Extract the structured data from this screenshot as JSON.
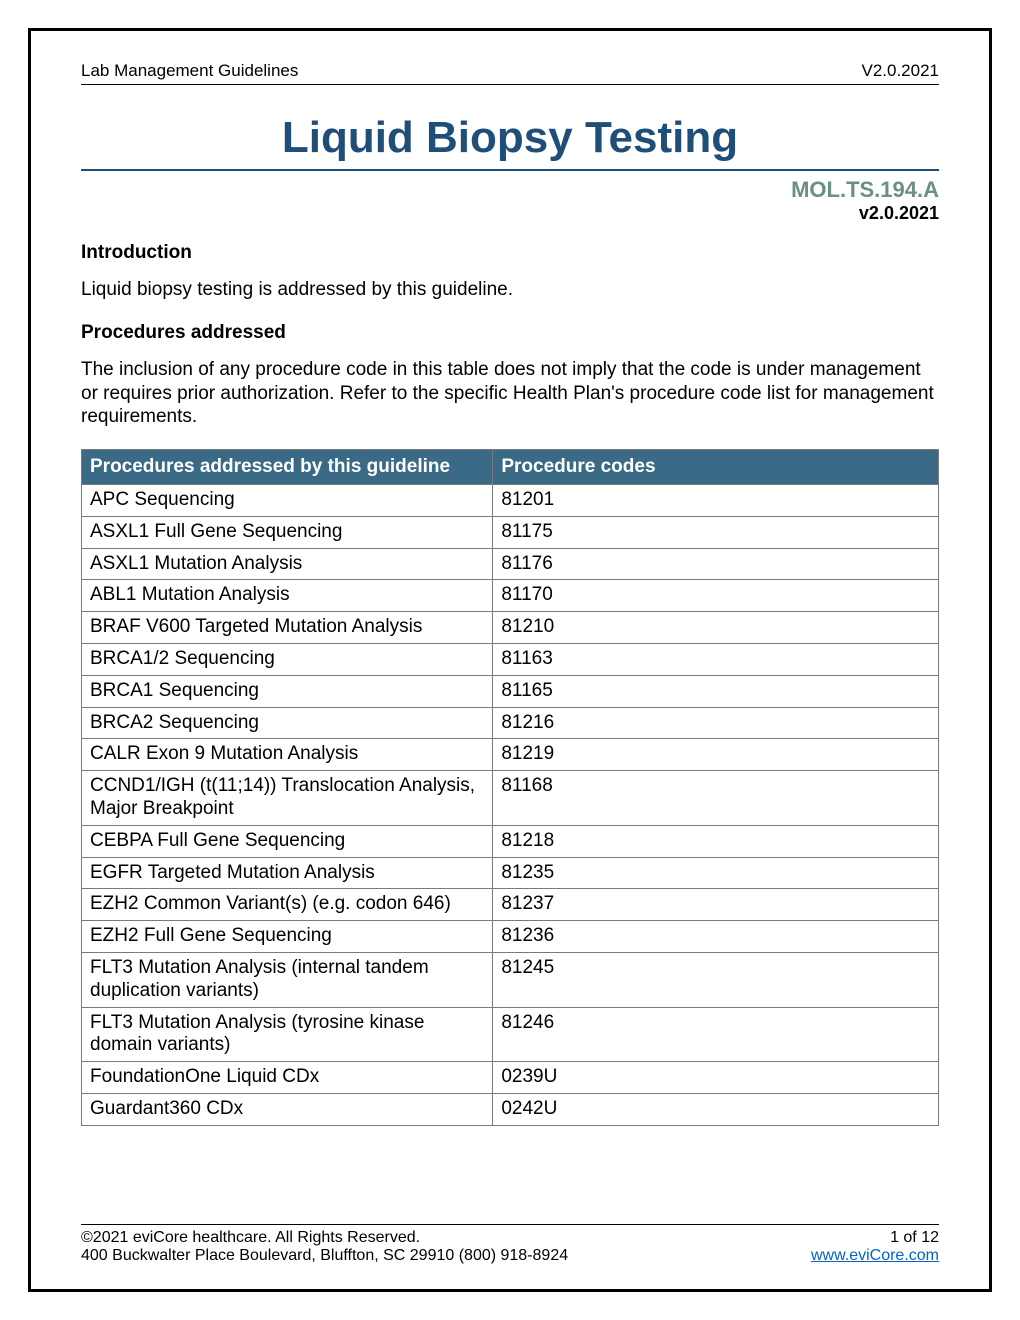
{
  "header": {
    "left": "Lab Management Guidelines",
    "right": "V2.0.2021"
  },
  "title": "Liquid Biopsy Testing",
  "doc_code": "MOL.TS.194.A",
  "doc_version": "v2.0.2021",
  "intro_head": "Introduction",
  "intro_text": "Liquid biopsy testing is addressed by this guideline.",
  "proc_head": "Procedures addressed",
  "proc_text": "The inclusion of any procedure code in this table does not imply that the code is under management or requires prior authorization. Refer to the specific Health Plan's procedure code list for management requirements.",
  "table": {
    "header_bg": "#3a6a86",
    "header_fg": "#ffffff",
    "border_color": "#7a7a7a",
    "columns": [
      "Procedures addressed by this guideline",
      "Procedure codes"
    ],
    "rows": [
      [
        "APC Sequencing",
        "81201"
      ],
      [
        "ASXL1 Full Gene Sequencing",
        "81175"
      ],
      [
        "ASXL1 Mutation Analysis",
        "81176"
      ],
      [
        "ABL1 Mutation Analysis",
        "81170"
      ],
      [
        "BRAF V600 Targeted Mutation Analysis",
        "81210"
      ],
      [
        "BRCA1/2 Sequencing",
        "81163"
      ],
      [
        "BRCA1 Sequencing",
        "81165"
      ],
      [
        "BRCA2 Sequencing",
        "81216"
      ],
      [
        "CALR Exon 9 Mutation Analysis",
        "81219"
      ],
      [
        "CCND1/IGH (t(11;14)) Translocation Analysis, Major Breakpoint",
        "81168"
      ],
      [
        "CEBPA Full Gene Sequencing",
        "81218"
      ],
      [
        "EGFR Targeted Mutation Analysis",
        "81235"
      ],
      [
        "EZH2 Common Variant(s) (e.g. codon 646)",
        "81237"
      ],
      [
        "EZH2 Full Gene Sequencing",
        "81236"
      ],
      [
        "FLT3 Mutation Analysis (internal tandem duplication variants)",
        "81245"
      ],
      [
        "FLT3 Mutation Analysis (tyrosine kinase domain variants)",
        "81246"
      ],
      [
        "FoundationOne Liquid CDx",
        "0239U"
      ],
      [
        "Guardant360 CDx",
        "0242U"
      ]
    ]
  },
  "footer": {
    "copyright": "©2021 eviCore healthcare. All Rights Reserved.",
    "page": "1 of 12",
    "address": "400 Buckwalter Place Boulevard, Bluffton, SC 29910 (800) 918-8924",
    "link": "www.eviCore.com"
  }
}
